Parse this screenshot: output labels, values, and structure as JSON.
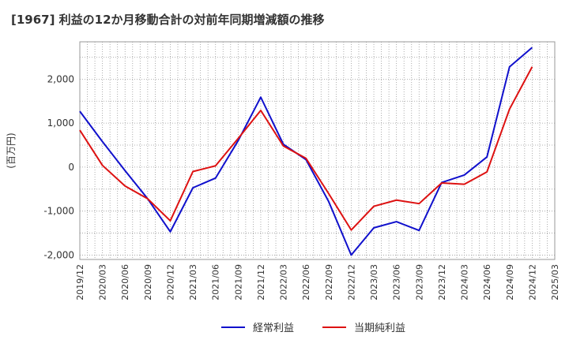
{
  "chart_data": {
    "type": "line",
    "title": "[1967]  利益の12か月移動合計の対前年同期増減額の推移",
    "ylabel": "(百万円)",
    "xlabel": "",
    "x_ticks": [
      "2019/12",
      "2020/03",
      "2020/06",
      "2020/09",
      "2020/12",
      "2021/03",
      "2021/06",
      "2021/09",
      "2021/12",
      "2022/03",
      "2022/06",
      "2022/09",
      "2022/12",
      "2023/03",
      "2023/06",
      "2023/09",
      "2023/12",
      "2024/03",
      "2024/06",
      "2024/09",
      "2024/12",
      "2025/03"
    ],
    "y_ticks": [
      2000,
      1000,
      0,
      -1000,
      -2000
    ],
    "y_tick_labels": [
      "2,000",
      "1,000",
      "0",
      "-1,000",
      "-2,000"
    ],
    "ylim": [
      -2100,
      2850
    ],
    "grid": true,
    "legend_position": "bottom",
    "series": [
      {
        "name": "経常利益",
        "color": "#1010cc",
        "x": [
          "2019/12",
          "2020/03",
          "2020/06",
          "2020/09",
          "2020/12",
          "2021/03",
          "2021/06",
          "2021/09",
          "2021/12",
          "2022/03",
          "2022/06",
          "2022/09",
          "2022/12",
          "2023/03",
          "2023/06",
          "2023/09",
          "2023/12",
          "2024/03",
          "2024/06",
          "2024/09",
          "2024/12"
        ],
        "values": [
          1270,
          580,
          -80,
          -720,
          -1470,
          -470,
          -250,
          600,
          1590,
          520,
          170,
          -780,
          -2000,
          -1380,
          -1240,
          -1440,
          -350,
          -180,
          230,
          2280,
          2720
        ]
      },
      {
        "name": "当期純利益",
        "color": "#dd1111",
        "x": [
          "2019/12",
          "2020/03",
          "2020/06",
          "2020/09",
          "2020/12",
          "2021/03",
          "2021/06",
          "2021/09",
          "2021/12",
          "2022/03",
          "2022/06",
          "2022/09",
          "2022/12",
          "2023/03",
          "2023/06",
          "2023/09",
          "2023/12",
          "2024/03",
          "2024/06",
          "2024/09",
          "2024/12"
        ],
        "values": [
          840,
          40,
          -430,
          -720,
          -1220,
          -100,
          30,
          650,
          1290,
          480,
          200,
          -600,
          -1430,
          -890,
          -750,
          -830,
          -360,
          -390,
          -110,
          1320,
          2280
        ]
      }
    ]
  }
}
